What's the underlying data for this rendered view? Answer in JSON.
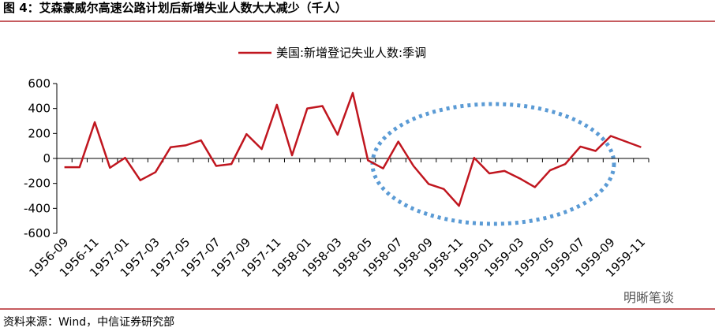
{
  "title": "图 4：艾森豪威尔高速公路计划后新增失业人数大大减少（千人）",
  "source": "资料来源：Wind，中信证券研究部",
  "watermark": "明晰笔谈",
  "chart_data": {
    "type": "line",
    "categories": [
      "1956-09",
      null,
      "1956-11",
      null,
      "1957-01",
      null,
      "1957-03",
      null,
      "1957-05",
      null,
      "1957-07",
      null,
      "1957-09",
      null,
      "1957-11",
      null,
      "1958-01",
      null,
      "1958-03",
      null,
      "1958-05",
      null,
      "1958-07",
      null,
      "1958-09",
      null,
      "1958-11",
      null,
      "1959-01",
      null,
      "1959-03",
      null,
      "1959-05",
      null,
      "1959-07",
      null,
      "1959-09",
      null,
      "1959-11"
    ],
    "series": [
      {
        "name": "美国:新增登记失业人数:季调",
        "color": "#c0161f",
        "values": [
          -70,
          -70,
          290,
          -75,
          5,
          -175,
          -110,
          90,
          105,
          145,
          -60,
          -45,
          195,
          75,
          430,
          25,
          400,
          420,
          190,
          525,
          -15,
          -80,
          135,
          -60,
          -205,
          -245,
          -380,
          5,
          -120,
          -100,
          -160,
          -230,
          -95,
          -45,
          95,
          60,
          180,
          135,
          90
        ]
      }
    ],
    "ylim": [
      -600,
      600
    ],
    "yticks": [
      -600,
      -400,
      -200,
      0,
      200,
      400,
      600
    ]
  }
}
